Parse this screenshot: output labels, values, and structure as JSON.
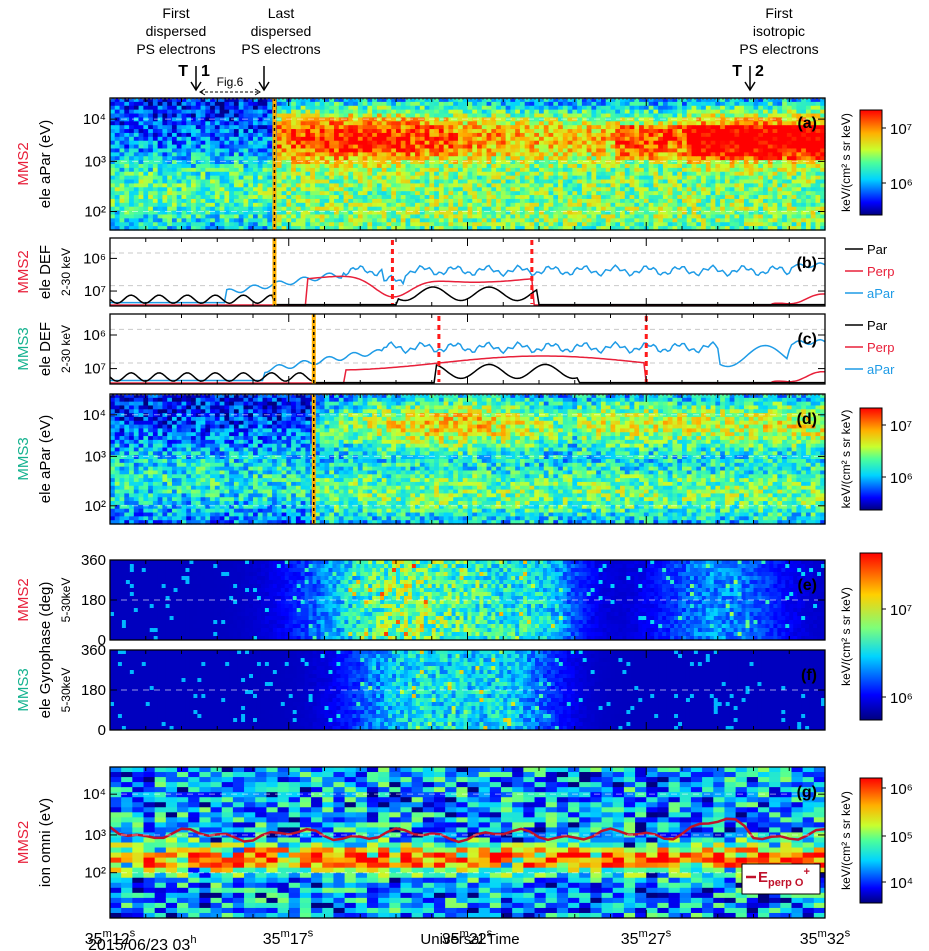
{
  "annotations": {
    "first_dispersed": [
      "First",
      "dispersed",
      "PS electrons"
    ],
    "last_dispersed": [
      "Last",
      "dispersed",
      "PS electrons"
    ],
    "first_isotropic": [
      "First",
      "isotropic",
      "PS electrons"
    ],
    "t1_label": "T",
    "t1_num": "1",
    "t2_label": "T",
    "t2_num": "2",
    "fig6": "Fig.6"
  },
  "x_axis": {
    "label": "Universal Time",
    "date": "2015/06/23 03",
    "date_sup": "h",
    "ticks": [
      {
        "min": "35",
        "sec": "12"
      },
      {
        "min": "35",
        "sec": "17"
      },
      {
        "min": "35",
        "sec": "22"
      },
      {
        "min": "35",
        "sec": "27"
      },
      {
        "min": "35",
        "sec": "32"
      }
    ]
  },
  "chart_data": [
    {
      "type": "heatmap",
      "panel": "a",
      "spacecraft": "MMS2",
      "spacecraft_color": "#e8203a",
      "ylabel": "ele aPar (eV)",
      "yscale": "log",
      "ylim": [
        30,
        30000
      ],
      "yticks": [
        "10²",
        "10³",
        "10⁴"
      ],
      "colorbar": {
        "label": "keV/(cm² s sr keV)",
        "ticks": [
          "10⁶",
          "10⁷"
        ]
      },
      "markers_s": [
        4.6,
        30.3
      ]
    },
    {
      "type": "line",
      "panel": "b",
      "spacecraft": "MMS2",
      "spacecraft_color": "#e8203a",
      "ylabel": "ele DEF",
      "ylabel2": "2-30 keV",
      "yscale": "log",
      "yticks": [
        "10⁶",
        "10⁷"
      ],
      "legend": [
        "Par",
        "Perp",
        "aPar"
      ],
      "series_colors": [
        "#000000",
        "#e8203a",
        "#1e9be6"
      ],
      "markers_s": [
        4.6,
        30.3
      ],
      "red_dashed_s": [
        7.9,
        11.8
      ]
    },
    {
      "type": "line",
      "panel": "c",
      "spacecraft": "MMS3",
      "spacecraft_color": "#14b28f",
      "ylabel": "ele DEF",
      "ylabel2": "2-30 keV",
      "yscale": "log",
      "yticks": [
        "10⁶",
        "10⁷"
      ],
      "legend": [
        "Par",
        "Perp",
        "aPar"
      ],
      "series_colors": [
        "#000000",
        "#e8203a",
        "#1e9be6"
      ],
      "markers_s": [
        5.7,
        31.3
      ],
      "red_dashed_s": [
        9.2,
        15.0
      ]
    },
    {
      "type": "heatmap",
      "panel": "d",
      "spacecraft": "MMS3",
      "spacecraft_color": "#14b28f",
      "ylabel": "ele aPar (eV)",
      "yscale": "log",
      "ylim": [
        30,
        30000
      ],
      "yticks": [
        "10²",
        "10³",
        "10⁴"
      ],
      "colorbar": {
        "label": "keV/(cm² s sr keV)",
        "ticks": [
          "10⁶",
          "10⁷"
        ]
      },
      "markers_s": [
        5.7,
        31.3
      ]
    },
    {
      "type": "heatmap",
      "panel": "e",
      "spacecraft": "MMS2",
      "spacecraft_color": "#e8203a",
      "ylabel": "",
      "ylabel2": "5-30keV",
      "ylim": [
        0,
        360
      ],
      "yticks": [
        "0",
        "180",
        "360"
      ],
      "colorbar": {
        "label": "keV/(cm² s sr keV)",
        "ticks": [
          "10⁶",
          "10⁷"
        ]
      }
    },
    {
      "type": "heatmap",
      "panel": "f",
      "spacecraft": "MMS3",
      "spacecraft_color": "#14b28f",
      "ylabel": "ele Gyrophase (deg)",
      "ylabel2": "5-30keV",
      "ylim": [
        0,
        360
      ],
      "yticks": [
        "0",
        "180",
        "360"
      ]
    },
    {
      "type": "heatmap",
      "panel": "g",
      "spacecraft": "MMS2",
      "spacecraft_color": "#e8203a",
      "ylabel": "ion omni (eV)",
      "yscale": "log",
      "ylim": [
        10,
        30000
      ],
      "yticks": [
        "10²",
        "10³",
        "10⁴"
      ],
      "colorbar": {
        "label": "keV/(cm² s sr keV)",
        "ticks": [
          "10⁴",
          "10⁵",
          "10⁶"
        ]
      },
      "legend_text": "E",
      "legend_sub": "perp O",
      "legend_sup": "+",
      "line_color": "#c0122b"
    }
  ]
}
